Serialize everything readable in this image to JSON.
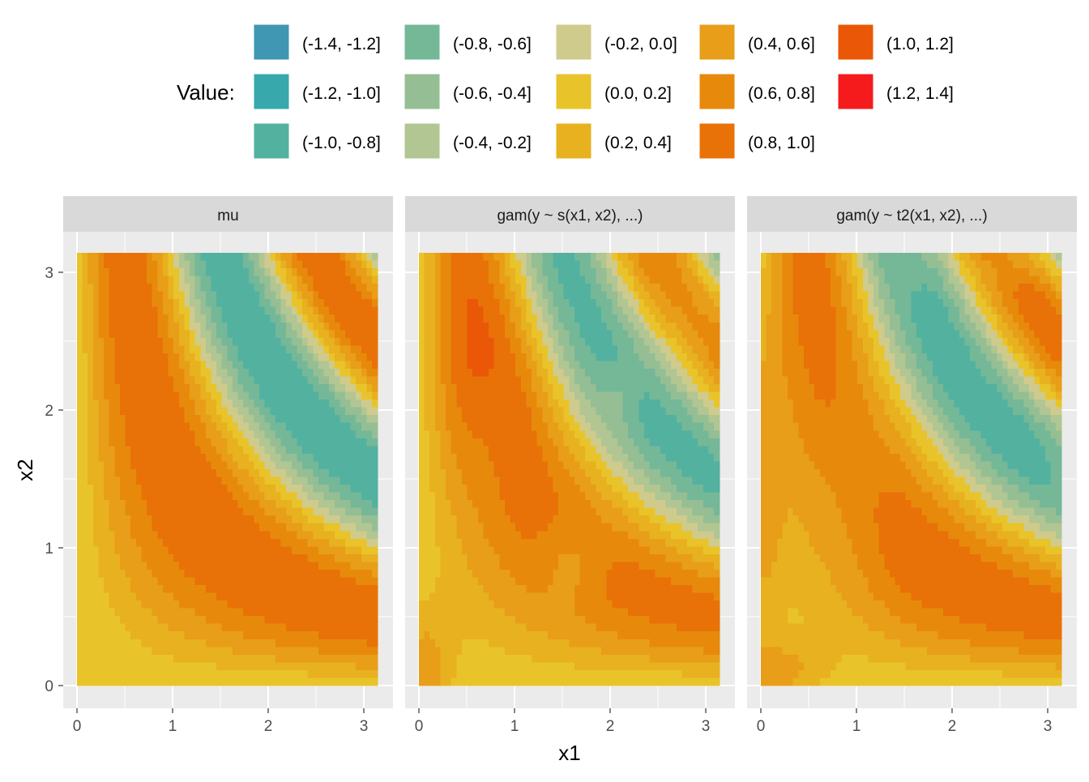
{
  "chart_data": {
    "type": "heatmap",
    "subtype": "filled-contour",
    "legend": {
      "title": "Value:",
      "position": "top",
      "bins": [
        {
          "label": "(-1.4, -1.2]",
          "color": "#3f97b3"
        },
        {
          "label": "(-1.2, -1.0]",
          "color": "#37a8ab"
        },
        {
          "label": "(-1.0, -0.8]",
          "color": "#53b1a0"
        },
        {
          "label": "(-0.8, -0.6]",
          "color": "#74b898"
        },
        {
          "label": "(-0.6, -0.4]",
          "color": "#95be94"
        },
        {
          "label": "(-0.4, -0.2]",
          "color": "#b1c692"
        },
        {
          "label": "(-0.2, 0.0]",
          "color": "#cfcb8d"
        },
        {
          "label": "(0.0, 0.2]",
          "color": "#e9c32a"
        },
        {
          "label": "(0.2, 0.4]",
          "color": "#e8b11f"
        },
        {
          "label": "(0.4, 0.6]",
          "color": "#e89e18"
        },
        {
          "label": "(0.6, 0.8]",
          "color": "#e78a0b"
        },
        {
          "label": "(0.8, 1.0]",
          "color": "#e87207"
        },
        {
          "label": "(1.0, 1.2]",
          "color": "#ea5706"
        },
        {
          "label": "(1.2, 1.4]",
          "color": "#f51b1c"
        }
      ]
    },
    "xlabel": "x1",
    "ylabel": "x2",
    "xlim": [
      -0.16,
      3.3
    ],
    "ylim": [
      -0.16,
      3.3
    ],
    "x_ticks": [
      0,
      1,
      2,
      3
    ],
    "y_ticks": [
      0,
      1,
      2,
      3
    ],
    "grid": true,
    "domain": [
      0,
      3.1416
    ],
    "panels": [
      {
        "title": "mu"
      },
      {
        "title": "gam(y ~ s(x1, x2), ...)"
      },
      {
        "title": "gam(y ~ t2(x1, x2), ...)"
      }
    ]
  }
}
